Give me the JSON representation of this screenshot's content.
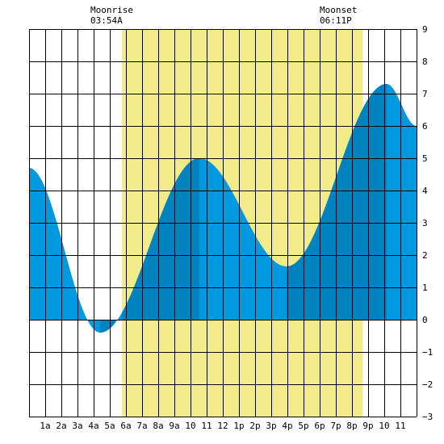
{
  "header": {
    "moonrise_label": "Moonrise",
    "moonrise_time": "03:54A",
    "moonset_label": "Moonset",
    "moonset_time": "06:11P"
  },
  "colors": {
    "daylight": "#f2ec8a",
    "tide_light": "#0099e0",
    "tide_dark": "#0082bf",
    "grid": "#000000"
  },
  "chart_data": {
    "type": "area",
    "title": "",
    "xlabel": "",
    "ylabel": "",
    "xlim": [
      0,
      24
    ],
    "ylim": [
      -3,
      9
    ],
    "y_ticks": [
      9,
      8,
      7,
      6,
      5,
      4,
      3,
      2,
      1,
      0,
      -1,
      -2,
      -3
    ],
    "x_tick_labels": [
      "1a",
      "2a",
      "3a",
      "4a",
      "5a",
      "6a",
      "7a",
      "8a",
      "9a",
      "10",
      "11",
      "12",
      "1p",
      "2p",
      "3p",
      "4p",
      "5p",
      "6p",
      "7p",
      "8p",
      "9p",
      "10",
      "11"
    ],
    "daylight_hours": [
      5.75,
      20.67
    ],
    "tide_extremes": [
      {
        "hour": 0.0,
        "height": 4.7
      },
      {
        "hour": 4.4,
        "height": -0.4
      },
      {
        "hour": 10.55,
        "height": 5.0
      },
      {
        "hour": 15.95,
        "height": 1.65
      },
      {
        "hour": 22.15,
        "height": 7.3
      },
      {
        "hour": 24.0,
        "height": 6.0
      }
    ],
    "dark_bands_hours": [
      [
        4.4,
        5.3
      ],
      [
        5.75,
        10.55
      ],
      [
        15.95,
        22.15
      ]
    ]
  }
}
